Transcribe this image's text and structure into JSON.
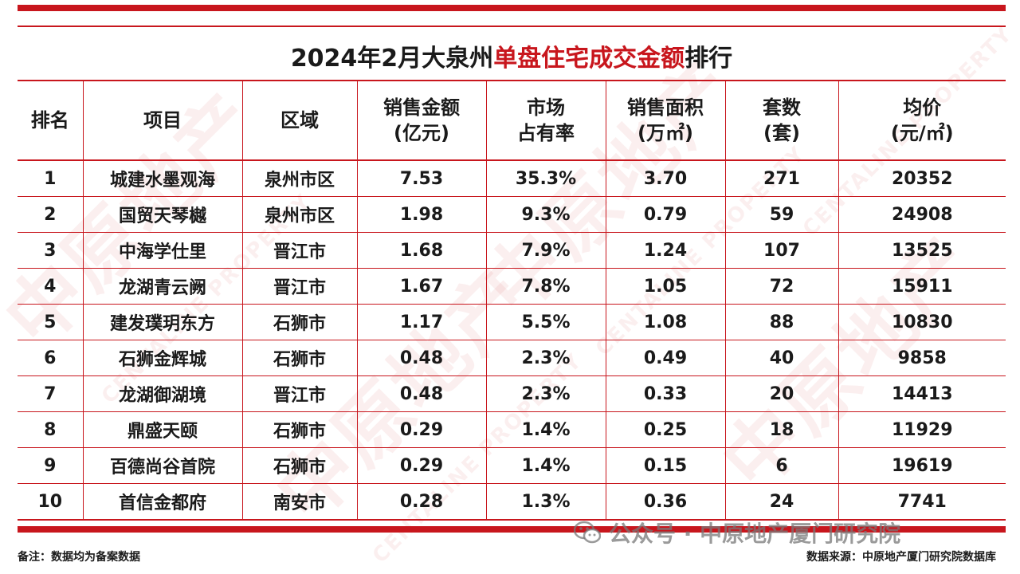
{
  "title": {
    "part1": "2024年2月大泉州",
    "highlight": "单盘住宅成交金额",
    "part2": "排行"
  },
  "table": {
    "headers": [
      {
        "line1": "排名",
        "line2": ""
      },
      {
        "line1": "项目",
        "line2": ""
      },
      {
        "line1": "区域",
        "line2": ""
      },
      {
        "line1": "销售金额",
        "line2": "(亿元)"
      },
      {
        "line1": "市场",
        "line2": "占有率"
      },
      {
        "line1": "销售面积",
        "line2": "(万㎡)"
      },
      {
        "line1": "套数",
        "line2": "(套)"
      },
      {
        "line1": "均价",
        "line2": "(元/㎡)"
      }
    ],
    "rows": [
      [
        "1",
        "城建水墨观海",
        "泉州市区",
        "7.53",
        "35.3%",
        "3.70",
        "271",
        "20352"
      ],
      [
        "2",
        "国贸天琴樾",
        "泉州市区",
        "1.98",
        "9.3%",
        "0.79",
        "59",
        "24908"
      ],
      [
        "3",
        "中海学仕里",
        "晋江市",
        "1.68",
        "7.9%",
        "1.24",
        "107",
        "13525"
      ],
      [
        "4",
        "龙湖青云阙",
        "晋江市",
        "1.67",
        "7.8%",
        "1.05",
        "72",
        "15911"
      ],
      [
        "5",
        "建发璞玥东方",
        "石狮市",
        "1.17",
        "5.5%",
        "1.08",
        "88",
        "10830"
      ],
      [
        "6",
        "石狮金辉城",
        "石狮市",
        "0.48",
        "2.3%",
        "0.49",
        "40",
        "9858"
      ],
      [
        "7",
        "龙湖御湖境",
        "晋江市",
        "0.48",
        "2.3%",
        "0.33",
        "20",
        "14413"
      ],
      [
        "8",
        "鼎盛天颐",
        "石狮市",
        "0.29",
        "1.4%",
        "0.25",
        "18",
        "11929"
      ],
      [
        "9",
        "百德尚谷首院",
        "石狮市",
        "0.29",
        "1.4%",
        "0.15",
        "6",
        "19619"
      ],
      [
        "10",
        "首信金都府",
        "南安市",
        "0.28",
        "1.3%",
        "0.36",
        "24",
        "7741"
      ]
    ]
  },
  "footer": {
    "note": "备注：数据均为备案数据",
    "source": "数据来源：中原地产厦门研究院数据库"
  },
  "wechat": {
    "icon": "wechat-icon",
    "text": "公众号 · 中原地产厦门研究院"
  },
  "watermark": {
    "brand_cn": "中原地产",
    "brand_en": "CENTALINE PROPERTY"
  },
  "colors": {
    "accent": "#c8161d",
    "text": "#1a1a1a"
  }
}
